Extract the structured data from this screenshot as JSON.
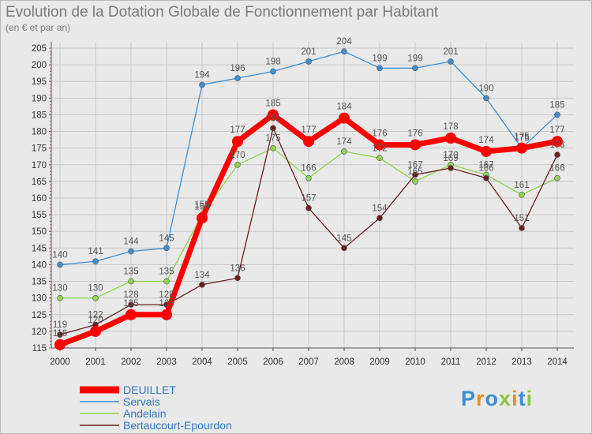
{
  "chart_data": {
    "type": "line",
    "title": "Evolution de la Dotation Globale de Fonctionnement par Habitant",
    "subtitle": "(en € et par an)",
    "categories": [
      "2000",
      "2001",
      "2002",
      "2003",
      "2004",
      "2005",
      "2006",
      "2007",
      "2008",
      "2009",
      "2010",
      "2011",
      "2012",
      "2013",
      "2014"
    ],
    "ylim": [
      115,
      205
    ],
    "yticks": [
      115,
      120,
      125,
      130,
      135,
      140,
      145,
      150,
      155,
      160,
      165,
      170,
      175,
      180,
      185,
      190,
      195,
      200,
      205
    ],
    "grid": true,
    "legend_position": "bottom-left",
    "series": [
      {
        "name": "Servais",
        "color": "#3f8ed1",
        "values": [
          140,
          141,
          144,
          145,
          194,
          196,
          198,
          201,
          204,
          199,
          199,
          201,
          190,
          175,
          185
        ]
      },
      {
        "name": "Andelain",
        "color": "#8fd34e",
        "values": [
          130,
          130,
          135,
          135,
          155,
          170,
          175,
          166,
          174,
          172,
          165,
          170,
          167,
          161,
          166
        ]
      },
      {
        "name": "Bertaucourt-Epourdon",
        "color": "#6b1e1e",
        "values": [
          119,
          122,
          128,
          128,
          134,
          136,
          181,
          157,
          145,
          154,
          167,
          169,
          166,
          151,
          173
        ]
      },
      {
        "name": "DEUILLET",
        "color": "#ff0000",
        "values": [
          116,
          120,
          125,
          125,
          154,
          177,
          185,
          177,
          184,
          176,
          176,
          178,
          174,
          175,
          177
        ]
      }
    ]
  },
  "legend_order": [
    "DEUILLET",
    "Servais",
    "Andelain",
    "Bertaucourt-Epourdon"
  ],
  "logo": {
    "text": "Proxiti",
    "letters": [
      {
        "c": "P",
        "color": "#3a8fd6"
      },
      {
        "c": "r",
        "color": "#f08a1c"
      },
      {
        "c": "o",
        "color": "#3a8fd6"
      },
      {
        "c": "x",
        "color": "#8cc63f"
      },
      {
        "c": "i",
        "color": "#f08a1c"
      },
      {
        "c": "t",
        "color": "#3a8fd6"
      },
      {
        "c": "i",
        "color": "#8cc63f"
      }
    ]
  }
}
